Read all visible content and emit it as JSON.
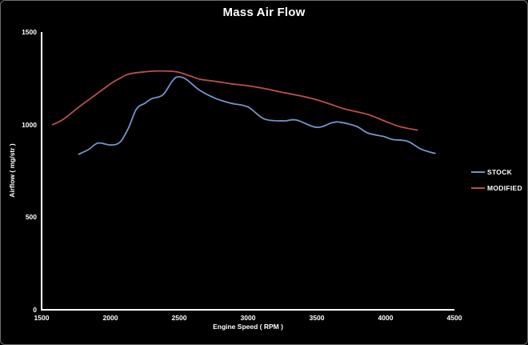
{
  "window": {
    "background_color": "#000000",
    "border_color": "#6e6e6e"
  },
  "chart_data": {
    "type": "line",
    "title": "Mass Air Flow",
    "xlabel": "Engine Speed ( RPM )",
    "ylabel": "Airflow ( mg/str )",
    "xlim": [
      1500,
      4500
    ],
    "ylim": [
      0,
      1500
    ],
    "xticks": [
      1500,
      2000,
      2500,
      3000,
      3500,
      4000,
      4500
    ],
    "yticks": [
      0,
      500,
      1000,
      1500
    ],
    "grid": false,
    "background": "#000000",
    "axis_color": "#ffffff",
    "text_color": "#ffffff",
    "legend_position": "right",
    "series": [
      {
        "name": "STOCK",
        "color": "#7494c8",
        "points": [
          [
            1770,
            840
          ],
          [
            1840,
            865
          ],
          [
            1910,
            900
          ],
          [
            2000,
            890
          ],
          [
            2070,
            905
          ],
          [
            2130,
            980
          ],
          [
            2190,
            1085
          ],
          [
            2250,
            1115
          ],
          [
            2300,
            1140
          ],
          [
            2380,
            1160
          ],
          [
            2450,
            1235
          ],
          [
            2490,
            1258
          ],
          [
            2550,
            1245
          ],
          [
            2650,
            1185
          ],
          [
            2770,
            1140
          ],
          [
            2880,
            1115
          ],
          [
            3000,
            1095
          ],
          [
            3120,
            1030
          ],
          [
            3260,
            1020
          ],
          [
            3350,
            1025
          ],
          [
            3500,
            985
          ],
          [
            3610,
            1010
          ],
          [
            3670,
            1013
          ],
          [
            3790,
            990
          ],
          [
            3870,
            955
          ],
          [
            3990,
            935
          ],
          [
            4050,
            920
          ],
          [
            4160,
            910
          ],
          [
            4250,
            870
          ],
          [
            4330,
            850
          ],
          [
            4360,
            845
          ]
        ]
      },
      {
        "name": "MODIFIED",
        "color": "#bb4f4d",
        "points": [
          [
            1580,
            1000
          ],
          [
            1660,
            1030
          ],
          [
            1780,
            1100
          ],
          [
            1900,
            1165
          ],
          [
            2010,
            1225
          ],
          [
            2070,
            1250
          ],
          [
            2130,
            1272
          ],
          [
            2250,
            1285
          ],
          [
            2360,
            1290
          ],
          [
            2480,
            1285
          ],
          [
            2590,
            1260
          ],
          [
            2650,
            1245
          ],
          [
            2770,
            1233
          ],
          [
            2880,
            1220
          ],
          [
            3000,
            1210
          ],
          [
            3120,
            1195
          ],
          [
            3230,
            1177
          ],
          [
            3350,
            1160
          ],
          [
            3470,
            1140
          ],
          [
            3580,
            1115
          ],
          [
            3700,
            1085
          ],
          [
            3870,
            1055
          ],
          [
            3990,
            1020
          ],
          [
            4100,
            990
          ],
          [
            4230,
            970
          ]
        ]
      }
    ]
  }
}
